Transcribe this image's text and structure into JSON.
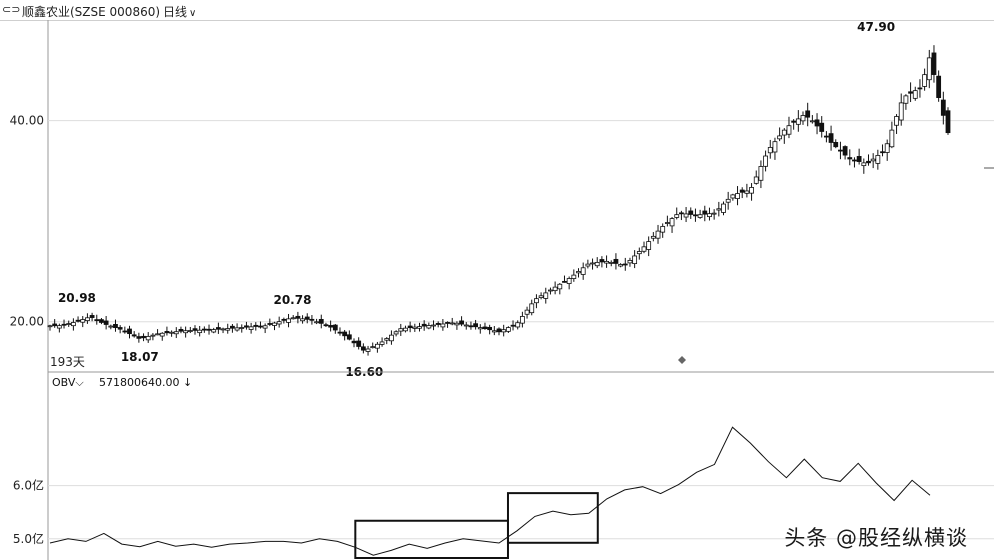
{
  "header": {
    "link_icon": "link-icon",
    "title": "顺鑫农业(SZSE 000860)",
    "period": "日线",
    "period_arrow": "chevron-down-icon"
  },
  "chart_data": [
    {
      "type": "candlestick",
      "ylim": [
        15,
        50
      ],
      "y_ticks": [
        {
          "value": 20,
          "label": "20.00"
        },
        {
          "value": 40,
          "label": "40.00"
        }
      ],
      "range_label": "193天",
      "annotations": [
        {
          "label": "20.98",
          "x": 0.03,
          "value": 20.98
        },
        {
          "label": "18.07",
          "x": 0.1,
          "value": 18.07
        },
        {
          "label": "20.78",
          "x": 0.27,
          "value": 20.78
        },
        {
          "label": "16.60",
          "x": 0.35,
          "value": 16.6
        },
        {
          "label": "47.90",
          "x": 0.92,
          "value": 47.9
        }
      ],
      "series": [
        {
          "x": 0.01,
          "value": 19.6
        },
        {
          "x": 0.03,
          "value": 20.0
        },
        {
          "x": 0.045,
          "value": 20.5
        },
        {
          "x": 0.06,
          "value": 19.8
        },
        {
          "x": 0.08,
          "value": 19.2
        },
        {
          "x": 0.1,
          "value": 18.3
        },
        {
          "x": 0.12,
          "value": 18.8
        },
        {
          "x": 0.15,
          "value": 19.1
        },
        {
          "x": 0.18,
          "value": 19.2
        },
        {
          "x": 0.21,
          "value": 19.4
        },
        {
          "x": 0.24,
          "value": 19.6
        },
        {
          "x": 0.27,
          "value": 20.4
        },
        {
          "x": 0.29,
          "value": 20.2
        },
        {
          "x": 0.31,
          "value": 19.6
        },
        {
          "x": 0.33,
          "value": 18.5
        },
        {
          "x": 0.35,
          "value": 17.1
        },
        {
          "x": 0.37,
          "value": 18.0
        },
        {
          "x": 0.39,
          "value": 19.3
        },
        {
          "x": 0.42,
          "value": 19.6
        },
        {
          "x": 0.45,
          "value": 19.9
        },
        {
          "x": 0.48,
          "value": 19.4
        },
        {
          "x": 0.5,
          "value": 19.0
        },
        {
          "x": 0.52,
          "value": 19.8
        },
        {
          "x": 0.54,
          "value": 22.2
        },
        {
          "x": 0.56,
          "value": 23.3
        },
        {
          "x": 0.58,
          "value": 24.4
        },
        {
          "x": 0.6,
          "value": 25.8
        },
        {
          "x": 0.62,
          "value": 26.0
        },
        {
          "x": 0.64,
          "value": 25.6
        },
        {
          "x": 0.66,
          "value": 27.3
        },
        {
          "x": 0.68,
          "value": 29.3
        },
        {
          "x": 0.7,
          "value": 30.8
        },
        {
          "x": 0.72,
          "value": 30.6
        },
        {
          "x": 0.74,
          "value": 30.8
        },
        {
          "x": 0.76,
          "value": 32.6
        },
        {
          "x": 0.78,
          "value": 33.1
        },
        {
          "x": 0.8,
          "value": 37.1
        },
        {
          "x": 0.82,
          "value": 39.3
        },
        {
          "x": 0.84,
          "value": 40.6
        },
        {
          "x": 0.85,
          "value": 39.9
        },
        {
          "x": 0.87,
          "value": 37.8
        },
        {
          "x": 0.89,
          "value": 36.2
        },
        {
          "x": 0.91,
          "value": 35.7
        },
        {
          "x": 0.93,
          "value": 37.1
        },
        {
          "x": 0.95,
          "value": 42.3
        },
        {
          "x": 0.97,
          "value": 43.3
        },
        {
          "x": 0.98,
          "value": 46.5
        },
        {
          "x": 0.99,
          "value": 42.1
        },
        {
          "x": 1.0,
          "value": 38.8
        }
      ]
    },
    {
      "type": "line",
      "title": "OBV",
      "value_label": "571800640.00",
      "ylim": [
        4.6,
        7.8
      ],
      "y_ticks": [
        {
          "value": 5.0,
          "label": "5.0亿"
        },
        {
          "value": 6.0,
          "label": "6.0亿"
        }
      ],
      "series": [
        {
          "x": 0.0,
          "value": 4.92
        },
        {
          "x": 0.02,
          "value": 5.0
        },
        {
          "x": 0.04,
          "value": 4.95
        },
        {
          "x": 0.06,
          "value": 5.1
        },
        {
          "x": 0.08,
          "value": 4.9
        },
        {
          "x": 0.1,
          "value": 4.85
        },
        {
          "x": 0.12,
          "value": 4.95
        },
        {
          "x": 0.14,
          "value": 4.86
        },
        {
          "x": 0.16,
          "value": 4.9
        },
        {
          "x": 0.18,
          "value": 4.84
        },
        {
          "x": 0.2,
          "value": 4.9
        },
        {
          "x": 0.22,
          "value": 4.92
        },
        {
          "x": 0.24,
          "value": 4.95
        },
        {
          "x": 0.26,
          "value": 4.95
        },
        {
          "x": 0.28,
          "value": 4.92
        },
        {
          "x": 0.3,
          "value": 5.0
        },
        {
          "x": 0.32,
          "value": 4.95
        },
        {
          "x": 0.34,
          "value": 4.84
        },
        {
          "x": 0.36,
          "value": 4.69
        },
        {
          "x": 0.38,
          "value": 4.78
        },
        {
          "x": 0.4,
          "value": 4.9
        },
        {
          "x": 0.42,
          "value": 4.82
        },
        {
          "x": 0.44,
          "value": 4.92
        },
        {
          "x": 0.46,
          "value": 5.0
        },
        {
          "x": 0.48,
          "value": 4.96
        },
        {
          "x": 0.5,
          "value": 4.92
        },
        {
          "x": 0.52,
          "value": 5.15
        },
        {
          "x": 0.54,
          "value": 5.42
        },
        {
          "x": 0.56,
          "value": 5.52
        },
        {
          "x": 0.58,
          "value": 5.45
        },
        {
          "x": 0.6,
          "value": 5.48
        },
        {
          "x": 0.62,
          "value": 5.75
        },
        {
          "x": 0.64,
          "value": 5.92
        },
        {
          "x": 0.66,
          "value": 5.98
        },
        {
          "x": 0.68,
          "value": 5.85
        },
        {
          "x": 0.7,
          "value": 6.02
        },
        {
          "x": 0.72,
          "value": 6.25
        },
        {
          "x": 0.74,
          "value": 6.4
        },
        {
          "x": 0.76,
          "value": 7.1
        },
        {
          "x": 0.78,
          "value": 6.8
        },
        {
          "x": 0.8,
          "value": 6.45
        },
        {
          "x": 0.82,
          "value": 6.15
        },
        {
          "x": 0.84,
          "value": 6.5
        },
        {
          "x": 0.86,
          "value": 6.15
        },
        {
          "x": 0.88,
          "value": 6.08
        },
        {
          "x": 0.9,
          "value": 6.42
        },
        {
          "x": 0.92,
          "value": 6.05
        },
        {
          "x": 0.94,
          "value": 5.72
        },
        {
          "x": 0.96,
          "value": 6.1
        },
        {
          "x": 0.98,
          "value": 5.82
        }
      ],
      "highlight_boxes": [
        {
          "x_start": 0.34,
          "x_end": 0.51
        },
        {
          "x_start": 0.51,
          "x_end": 0.61
        }
      ]
    }
  ],
  "watermark": "头条 @股经纵横谈"
}
